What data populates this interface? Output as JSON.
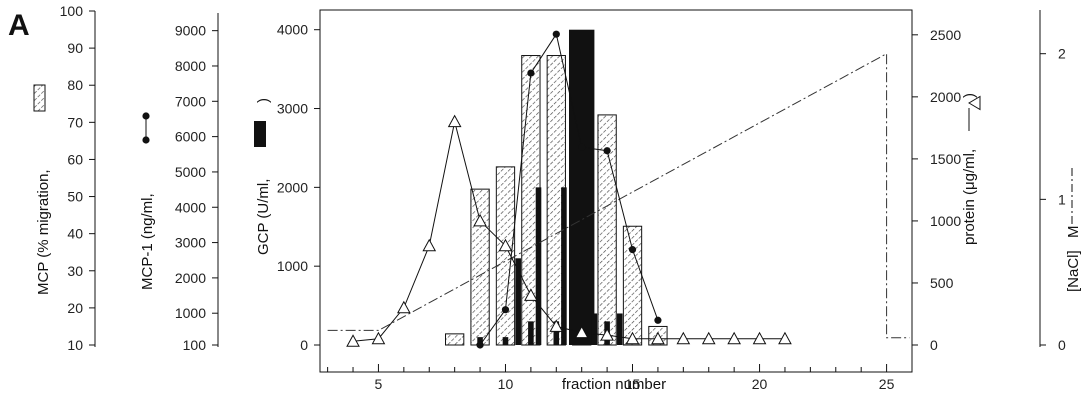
{
  "panel_label": "A",
  "chart_data": {
    "type": "bar",
    "xlabel": "fraction number",
    "xlim": [
      2.7,
      26.0
    ],
    "xticks": [
      5,
      10,
      15,
      20,
      25
    ],
    "axes": {
      "mcp": {
        "label": "MCP (% migration,",
        "range": [
          10,
          100
        ],
        "ticks": [
          10,
          20,
          30,
          40,
          50,
          60,
          70,
          80,
          90,
          100
        ]
      },
      "mcp1": {
        "label": "MCP-1 (ng/ml,",
        "range": [
          100,
          9500
        ],
        "ticks": [
          100,
          1000,
          2000,
          3000,
          4000,
          5000,
          6000,
          7000,
          8000,
          9000
        ]
      },
      "gcp": {
        "label": "GCP (U/ml,",
        "label_end": ")",
        "range": [
          0,
          4250
        ],
        "ticks": [
          0,
          1000,
          2000,
          3000,
          4000
        ]
      },
      "protein": {
        "label": "protein (μg/ml,",
        "label_end": ")",
        "range": [
          0,
          2700
        ],
        "ticks": [
          0,
          500,
          1000,
          1500,
          2000,
          2500
        ]
      },
      "nacl": {
        "label": "[NaCl]",
        "label_unit": "M",
        "range": [
          0,
          2.3
        ],
        "ticks": [
          0,
          1,
          2
        ]
      }
    },
    "series": [
      {
        "name": "MCP",
        "kind": "bar-hatched",
        "axis": "mcp",
        "x": [
          8,
          9,
          10,
          11,
          12,
          13,
          14,
          15,
          16
        ],
        "values": [
          13,
          52,
          58,
          88,
          88,
          71,
          72,
          42,
          15
        ]
      },
      {
        "name": "GCP",
        "kind": "bar-solid",
        "axis": "gcp",
        "x": [
          9,
          10,
          10.5,
          11,
          11.3,
          12,
          12.3,
          13,
          13.5,
          14,
          14.5
        ],
        "values": [
          100,
          100,
          1100,
          300,
          2000,
          300,
          2000,
          4000,
          400,
          300,
          400
        ]
      },
      {
        "name": "MCP-1",
        "kind": "line-dot",
        "axis": "mcp1",
        "x": [
          9,
          10,
          11,
          12,
          13,
          14,
          15,
          16
        ],
        "values": [
          100,
          1100,
          7800,
          8900,
          5700,
          5600,
          2800,
          800
        ]
      },
      {
        "name": "protein",
        "kind": "line-triangle",
        "axis": "protein",
        "x": [
          4,
          5,
          6,
          7,
          8,
          9,
          10,
          11,
          12,
          13,
          14,
          15,
          16,
          17,
          18,
          19,
          20,
          21
        ],
        "values": [
          30,
          50,
          300,
          800,
          1800,
          1000,
          800,
          400,
          150,
          100,
          80,
          50,
          50,
          50,
          50,
          50,
          50,
          50
        ]
      },
      {
        "name": "NaCl",
        "kind": "line-dashdot",
        "axis": "nacl",
        "x": [
          3,
          5,
          25,
          25,
          25.9
        ],
        "values": [
          0.1,
          0.1,
          2.0,
          0.05,
          0.05
        ]
      }
    ]
  },
  "colors": {
    "ink": "#111111",
    "bar_hatch": "#333333",
    "axis": "#222222"
  }
}
